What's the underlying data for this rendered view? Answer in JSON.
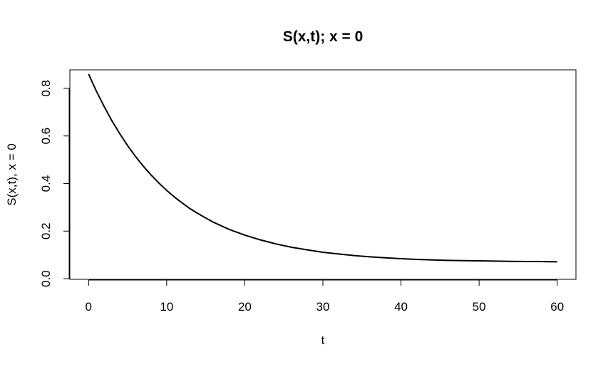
{
  "chart_data": {
    "type": "line",
    "title": "S(x,t); x = 0",
    "xlabel": "t",
    "ylabel": "S(x,t), x = 0",
    "xlim": [
      -2.4,
      62.4
    ],
    "ylim": [
      -0.0028,
      0.8778
    ],
    "x_ticks": [
      0,
      10,
      20,
      30,
      40,
      50,
      60
    ],
    "x_tick_labels": [
      "0",
      "10",
      "20",
      "30",
      "40",
      "50",
      "60"
    ],
    "y_ticks": [
      0.0,
      0.2,
      0.4,
      0.6,
      0.8
    ],
    "y_tick_labels": [
      "0.0",
      "0.2",
      "0.4",
      "0.6",
      "0.8"
    ],
    "grid": false,
    "legend": "none",
    "series": [
      {
        "color": "#000000",
        "x": [
          0,
          1,
          2,
          3,
          4,
          5,
          6,
          7,
          8,
          9,
          10,
          11,
          12,
          13,
          14,
          15,
          16,
          17,
          18,
          19,
          20,
          22,
          24,
          26,
          28,
          30,
          32,
          34,
          36,
          38,
          40,
          42,
          44,
          46,
          48,
          50,
          52,
          54,
          56,
          58,
          60
        ],
        "y": [
          0.86,
          0.788,
          0.723,
          0.663,
          0.609,
          0.559,
          0.514,
          0.473,
          0.436,
          0.402,
          0.371,
          0.343,
          0.318,
          0.294,
          0.274,
          0.255,
          0.237,
          0.222,
          0.207,
          0.195,
          0.183,
          0.163,
          0.146,
          0.132,
          0.121,
          0.111,
          0.104,
          0.097,
          0.092,
          0.088,
          0.084,
          0.081,
          0.079,
          0.077,
          0.076,
          0.075,
          0.074,
          0.073,
          0.072,
          0.072,
          0.071
        ]
      }
    ]
  }
}
